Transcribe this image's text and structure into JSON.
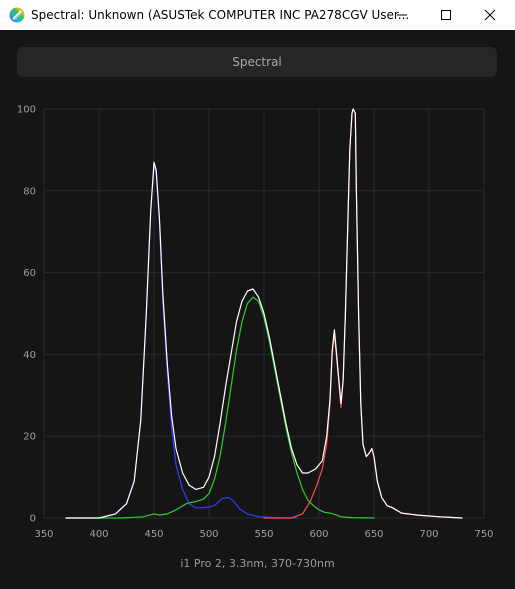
{
  "window": {
    "title": "Spectral: Unknown (ASUSTek COMPUTER INC PA278CGV User...",
    "icon": "rainbow-logo-icon",
    "controls": [
      "minimize-icon",
      "maximize-icon",
      "close-icon"
    ]
  },
  "toolbar": {
    "spectral_label": "Spectral"
  },
  "chart_data": {
    "type": "line",
    "caption": "i1 Pro 2, 3.3nm, 370-730nm",
    "xlabel": "",
    "ylabel": "",
    "xlim": [
      350,
      750
    ],
    "ylim": [
      0,
      100
    ],
    "xticks": [
      350,
      400,
      450,
      500,
      550,
      600,
      650,
      700,
      750
    ],
    "yticks": [
      0,
      20,
      40,
      60,
      80,
      100
    ],
    "grid": true,
    "background": "#151515",
    "series": [
      {
        "color": "#3a3aff",
        "x": [
          370,
          400,
          415,
          425,
          432,
          438,
          443,
          447,
          450,
          452,
          455,
          458,
          462,
          466,
          470,
          476,
          482,
          488,
          495,
          505,
          512,
          518,
          522,
          528,
          535,
          545,
          560,
          580
        ],
        "y": [
          0,
          0,
          1,
          3.5,
          9,
          24,
          50,
          75,
          86,
          84,
          72,
          53,
          36,
          22,
          13,
          7,
          3.5,
          2.5,
          2.5,
          3,
          4.8,
          5,
          4.2,
          2.2,
          1,
          0.3,
          0.1,
          0
        ]
      },
      {
        "color": "#2ecc2e",
        "x": [
          370,
          420,
          440,
          450,
          455,
          462,
          470,
          480,
          488,
          495,
          500,
          505,
          510,
          515,
          520,
          525,
          530,
          535,
          540,
          545,
          550,
          555,
          560,
          565,
          570,
          575,
          580,
          585,
          590,
          595,
          600,
          605,
          610,
          615,
          620,
          630,
          650
        ],
        "y": [
          0,
          0,
          0.3,
          1,
          0.7,
          1,
          2,
          3.6,
          4,
          4.6,
          6,
          9.5,
          15,
          23,
          32,
          41,
          48,
          52.5,
          54,
          53,
          49,
          43,
          36,
          29,
          22,
          16,
          11,
          7,
          4.3,
          3,
          2,
          1.4,
          1.2,
          0.8,
          0.3,
          0.1,
          0
        ]
      },
      {
        "color": "#ff4b4b",
        "x": [
          550,
          575,
          585,
          592,
          598,
          603,
          607,
          610,
          612,
          614,
          617,
          620,
          622,
          624,
          626,
          628,
          630,
          631,
          633,
          634,
          636,
          638,
          640,
          643,
          646,
          648,
          650,
          653,
          657,
          662,
          667,
          675,
          690,
          710,
          730
        ],
        "y": [
          0,
          0,
          1,
          4,
          8,
          12,
          18,
          28,
          40,
          45,
          36,
          27,
          34,
          50,
          70,
          90,
          99,
          100,
          99,
          80,
          50,
          28,
          18,
          15,
          16,
          17,
          15,
          9,
          5,
          3,
          2.5,
          1.2,
          0.7,
          0.3,
          0
        ]
      },
      {
        "color": "#ffffff",
        "x": [
          370,
          400,
          415,
          425,
          432,
          438,
          443,
          447,
          450,
          452,
          455,
          458,
          462,
          466,
          470,
          476,
          482,
          488,
          495,
          500,
          505,
          510,
          515,
          520,
          525,
          530,
          535,
          540,
          545,
          550,
          555,
          560,
          565,
          570,
          575,
          580,
          585,
          590,
          597,
          603,
          607,
          610,
          612,
          614,
          617,
          620,
          622,
          624,
          626,
          628,
          630,
          631,
          633,
          634,
          636,
          638,
          640,
          643,
          646,
          648,
          650,
          653,
          657,
          662,
          667,
          675,
          690,
          710,
          730
        ],
        "y": [
          0,
          0,
          1,
          3.5,
          9,
          24,
          50,
          75,
          87,
          85,
          73,
          55,
          38,
          25,
          17,
          11,
          8,
          7,
          7.5,
          10,
          15,
          23,
          32,
          40,
          48,
          53,
          55.5,
          56,
          54,
          50,
          44,
          37,
          30,
          23,
          17,
          13,
          11,
          11,
          12,
          14,
          20,
          29,
          41,
          46,
          37,
          28,
          34,
          50,
          70,
          90,
          99,
          100,
          99,
          80,
          50,
          28,
          18,
          15,
          16,
          17,
          15,
          9,
          5,
          3,
          2.5,
          1.2,
          0.7,
          0.3,
          0
        ]
      }
    ]
  }
}
